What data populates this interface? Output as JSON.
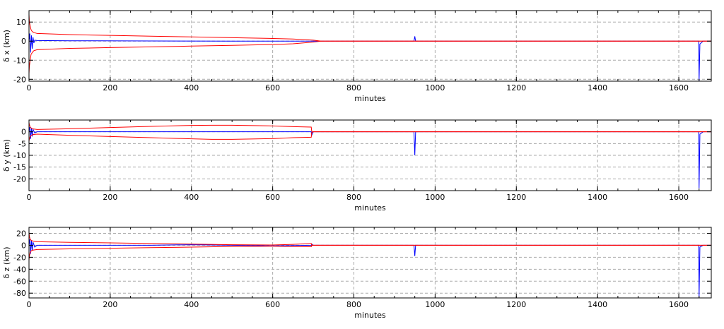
{
  "chart_data": [
    {
      "type": "line",
      "xlabel": "minutes",
      "ylabel": "δ x (km)",
      "xlim": [
        0,
        1680
      ],
      "ylim": [
        -21,
        16
      ],
      "xticks": [
        0,
        200,
        400,
        600,
        800,
        1000,
        1200,
        1400,
        1600
      ],
      "yticks": [
        -20,
        -10,
        0,
        10
      ],
      "grid": true,
      "series": [
        {
          "color": "#0000ff",
          "role": "error",
          "x": [
            0,
            2,
            4,
            6,
            8,
            10,
            12,
            14,
            20,
            100,
            300,
            500,
            700,
            948,
            950,
            952,
            1000,
            1649,
            1650,
            1652,
            1660,
            1680
          ],
          "y": [
            0,
            4,
            -6,
            3,
            -4,
            2,
            -1,
            0.5,
            0.3,
            0.2,
            0.1,
            0,
            0,
            0,
            2.5,
            0,
            0,
            0,
            -21,
            -1.5,
            0,
            0
          ]
        },
        {
          "color": "#ff0000",
          "role": "upper-bound",
          "x": [
            0,
            1,
            3,
            5,
            8,
            12,
            20,
            100,
            200,
            300,
            400,
            500,
            600,
            650,
            700,
            720,
            1680
          ],
          "y": [
            14,
            10,
            8,
            6,
            5,
            4.5,
            4,
            3.4,
            3,
            2.6,
            2.2,
            1.8,
            1.4,
            1.1,
            0.5,
            0,
            0
          ]
        },
        {
          "color": "#ff0000",
          "role": "lower-bound",
          "x": [
            0,
            1,
            3,
            5,
            8,
            12,
            20,
            100,
            200,
            300,
            400,
            500,
            600,
            650,
            700,
            720,
            1680
          ],
          "y": [
            -17,
            -13,
            -10,
            -7,
            -6,
            -5,
            -4.5,
            -3.8,
            -3.4,
            -3,
            -2.6,
            -2.2,
            -1.8,
            -1.4,
            -0.5,
            0,
            0
          ]
        }
      ]
    },
    {
      "type": "line",
      "xlabel": "minutes",
      "ylabel": "δ y (km)",
      "xlim": [
        0,
        1680
      ],
      "ylim": [
        -25,
        5
      ],
      "xticks": [
        0,
        200,
        400,
        600,
        800,
        1000,
        1200,
        1400,
        1600
      ],
      "yticks": [
        -20,
        -15,
        -10,
        -5,
        0
      ],
      "grid": true,
      "series": [
        {
          "color": "#0000ff",
          "role": "error",
          "x": [
            0,
            2,
            4,
            6,
            8,
            10,
            14,
            20,
            100,
            300,
            500,
            695,
            696,
            700,
            948,
            950,
            952,
            1000,
            1649,
            1650,
            1652,
            1660,
            1680
          ],
          "y": [
            0,
            2,
            -3,
            1.5,
            -2,
            1,
            -0.5,
            0,
            0,
            0,
            0,
            0,
            -1.5,
            0,
            0,
            -10,
            0,
            0,
            0,
            -24,
            -1,
            0,
            0
          ]
        },
        {
          "color": "#ff0000",
          "role": "upper-bound",
          "x": [
            0,
            1,
            3,
            6,
            10,
            20,
            100,
            200,
            300,
            400,
            450,
            500,
            600,
            650,
            695,
            696,
            700,
            1680
          ],
          "y": [
            4,
            3,
            2,
            1.5,
            1.2,
            1,
            1.3,
            1.8,
            2.3,
            2.7,
            2.8,
            2.8,
            2.5,
            2.2,
            2,
            0.3,
            0,
            0
          ]
        },
        {
          "color": "#ff0000",
          "role": "lower-bound",
          "x": [
            0,
            1,
            3,
            6,
            10,
            20,
            100,
            200,
            300,
            400,
            450,
            500,
            600,
            650,
            695,
            696,
            700,
            1680
          ],
          "y": [
            -4,
            -3,
            -2,
            -1.5,
            -1.2,
            -1,
            -1.5,
            -2,
            -2.5,
            -3,
            -3.2,
            -3.2,
            -2.9,
            -2.5,
            -2.3,
            -0.3,
            0,
            0
          ]
        }
      ]
    },
    {
      "type": "line",
      "xlabel": "minutes",
      "ylabel": "δ z (km)",
      "xlim": [
        0,
        1680
      ],
      "ylim": [
        -88,
        30
      ],
      "xticks": [
        0,
        200,
        400,
        600,
        800,
        1000,
        1200,
        1400,
        1600
      ],
      "yticks": [
        -80,
        -60,
        -40,
        -20,
        0,
        20
      ],
      "grid": true,
      "series": [
        {
          "color": "#0000ff",
          "role": "error",
          "x": [
            0,
            2,
            4,
            6,
            8,
            10,
            14,
            20,
            100,
            300,
            400,
            500,
            600,
            695,
            696,
            700,
            948,
            950,
            952,
            1000,
            1649,
            1650,
            1652,
            1660,
            1680
          ],
          "y": [
            0,
            10,
            -14,
            8,
            -9,
            5,
            -3,
            0,
            0,
            0,
            1,
            0,
            -1,
            0,
            2,
            0,
            0,
            -18,
            0,
            0,
            0,
            -88,
            -3,
            0,
            0
          ]
        },
        {
          "color": "#ff0000",
          "role": "upper-bound",
          "x": [
            0,
            1,
            3,
            6,
            10,
            20,
            100,
            200,
            300,
            400,
            500,
            600,
            650,
            695,
            696,
            700,
            1680
          ],
          "y": [
            22,
            15,
            10,
            8,
            7,
            6,
            5,
            4,
            3,
            2,
            1,
            0.5,
            1.5,
            3,
            0.5,
            0,
            0
          ]
        },
        {
          "color": "#ff0000",
          "role": "lower-bound",
          "x": [
            0,
            1,
            3,
            6,
            10,
            20,
            100,
            200,
            300,
            400,
            500,
            600,
            650,
            695,
            696,
            700,
            1680
          ],
          "y": [
            -25,
            -18,
            -12,
            -9,
            -8,
            -7,
            -6,
            -5,
            -4,
            -3,
            -2,
            -1.5,
            -2,
            -2.5,
            -0.5,
            0,
            0
          ]
        }
      ]
    }
  ]
}
